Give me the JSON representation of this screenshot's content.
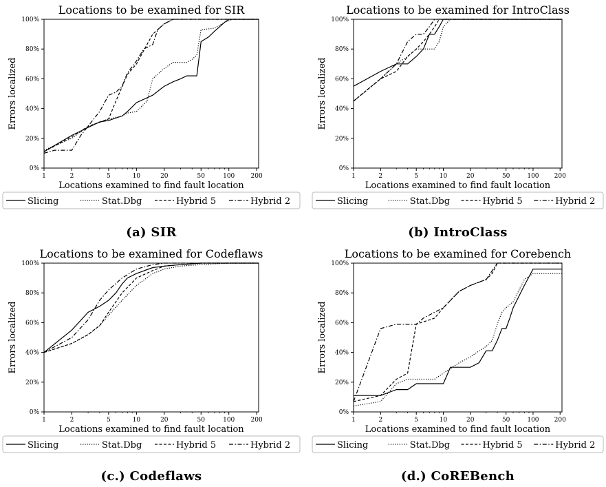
{
  "chart_data": [
    {
      "type": "line",
      "title": "Locations to be examined for SIR",
      "xlabel": "Locations examined to find fault location",
      "ylabel": "Errors localized",
      "x_scale": "log",
      "xlim": [
        1,
        210
      ],
      "ylim": [
        0,
        100
      ],
      "x_ticks": [
        "1",
        "2",
        "5",
        "10",
        "20",
        "50",
        "100",
        "200"
      ],
      "y_ticks": [
        "0%",
        "20%",
        "40%",
        "60%",
        "80%",
        "100%"
      ],
      "legend": "bottom",
      "caption": "(a) SIR",
      "series": [
        {
          "name": "Slicing",
          "style": "solid",
          "points": [
            [
              1,
              11
            ],
            [
              2,
              22
            ],
            [
              4,
              31
            ],
            [
              5,
              32
            ],
            [
              7,
              35
            ],
            [
              8,
              38
            ],
            [
              10,
              44
            ],
            [
              15,
              49
            ],
            [
              20,
              55
            ],
            [
              25,
              58
            ],
            [
              30,
              60
            ],
            [
              35,
              62
            ],
            [
              45,
              62
            ],
            [
              50,
              85
            ],
            [
              60,
              88
            ],
            [
              70,
              92
            ],
            [
              90,
              98
            ],
            [
              100,
              100
            ],
            [
              210,
              100
            ]
          ]
        },
        {
          "name": "Stat.Dbg",
          "style": "dotted",
          "points": [
            [
              1,
              12
            ],
            [
              2,
              20
            ],
            [
              3,
              28
            ],
            [
              5,
              33
            ],
            [
              7,
              35
            ],
            [
              8,
              37
            ],
            [
              10,
              38
            ],
            [
              13,
              45
            ],
            [
              15,
              60
            ],
            [
              20,
              67
            ],
            [
              25,
              71
            ],
            [
              35,
              71
            ],
            [
              40,
              73
            ],
            [
              45,
              76
            ],
            [
              50,
              93
            ],
            [
              70,
              94
            ],
            [
              90,
              98
            ],
            [
              110,
              100
            ],
            [
              210,
              100
            ]
          ]
        },
        {
          "name": "Hybrid 5",
          "style": "dashed",
          "points": [
            [
              1,
              11
            ],
            [
              2,
              21
            ],
            [
              3,
              28
            ],
            [
              5,
              33
            ],
            [
              6,
              45
            ],
            [
              8,
              63
            ],
            [
              10,
              70
            ],
            [
              13,
              83
            ],
            [
              15,
              90
            ],
            [
              20,
              97
            ],
            [
              25,
              100
            ],
            [
              210,
              100
            ]
          ]
        },
        {
          "name": "Hybrid 2",
          "style": "dashdot",
          "points": [
            [
              1,
              10
            ],
            [
              1.3,
              12
            ],
            [
              2,
              12
            ],
            [
              2.5,
              22
            ],
            [
              4,
              38
            ],
            [
              5,
              49
            ],
            [
              6,
              51
            ],
            [
              7,
              55
            ],
            [
              8,
              64
            ],
            [
              10,
              72
            ],
            [
              12,
              80
            ],
            [
              15,
              83
            ],
            [
              17,
              93
            ],
            [
              20,
              97
            ],
            [
              25,
              100
            ],
            [
              210,
              100
            ]
          ]
        }
      ]
    },
    {
      "type": "line",
      "title": "Locations to be examined for IntroClass",
      "xlabel": "Locations examined to find fault location",
      "ylabel": "Errors localized",
      "x_scale": "log",
      "xlim": [
        1,
        210
      ],
      "ylim": [
        0,
        100
      ],
      "x_ticks": [
        "1",
        "2",
        "5",
        "10",
        "20",
        "50",
        "100",
        "200"
      ],
      "y_ticks": [
        "0%",
        "20%",
        "40%",
        "60%",
        "80%",
        "100%"
      ],
      "legend": "bottom",
      "caption": "(b) IntroClass",
      "series": [
        {
          "name": "Slicing",
          "style": "solid",
          "points": [
            [
              1,
              55
            ],
            [
              2,
              65
            ],
            [
              3,
              70
            ],
            [
              4,
              70
            ],
            [
              5,
              75
            ],
            [
              6,
              80
            ],
            [
              7,
              90
            ],
            [
              8,
              90
            ],
            [
              9,
              95
            ],
            [
              10,
              100
            ],
            [
              210,
              100
            ]
          ]
        },
        {
          "name": "Stat.Dbg",
          "style": "dotted",
          "points": [
            [
              1,
              45
            ],
            [
              2,
              60
            ],
            [
              3,
              70
            ],
            [
              4,
              75
            ],
            [
              5,
              80
            ],
            [
              6,
              80
            ],
            [
              7,
              80
            ],
            [
              8,
              80
            ],
            [
              9,
              85
            ],
            [
              10,
              95
            ],
            [
              12,
              100
            ],
            [
              210,
              100
            ]
          ]
        },
        {
          "name": "Hybrid 5",
          "style": "dashed",
          "points": [
            [
              1,
              45
            ],
            [
              2,
              60
            ],
            [
              3,
              65
            ],
            [
              4,
              75
            ],
            [
              5,
              80
            ],
            [
              6,
              85
            ],
            [
              7,
              90
            ],
            [
              8,
              95
            ],
            [
              9,
              100
            ],
            [
              210,
              100
            ]
          ]
        },
        {
          "name": "Hybrid 2",
          "style": "dashdot",
          "points": [
            [
              1,
              45
            ],
            [
              2,
              60
            ],
            [
              3,
              70
            ],
            [
              4,
              85
            ],
            [
              5,
              90
            ],
            [
              6,
              90
            ],
            [
              7,
              95
            ],
            [
              8,
              100
            ],
            [
              210,
              100
            ]
          ]
        }
      ]
    },
    {
      "type": "line",
      "title": "Locations to be examined for Codeflaws",
      "xlabel": "Locations examined to find fault location",
      "ylabel": "Errors localized",
      "x_scale": "log",
      "xlim": [
        1,
        210
      ],
      "ylim": [
        0,
        100
      ],
      "x_ticks": [
        "1",
        "2",
        "5",
        "10",
        "20",
        "50",
        "100",
        "200"
      ],
      "y_ticks": [
        "0%",
        "20%",
        "40%",
        "60%",
        "80%",
        "100%"
      ],
      "legend": "bottom",
      "caption": "(c.) Codeflaws",
      "series": [
        {
          "name": "Slicing",
          "style": "solid",
          "points": [
            [
              1,
              40
            ],
            [
              2,
              55
            ],
            [
              3,
              67
            ],
            [
              4,
              71
            ],
            [
              5,
              75
            ],
            [
              6,
              80
            ],
            [
              7,
              86
            ],
            [
              8,
              90
            ],
            [
              10,
              93
            ],
            [
              15,
              97
            ],
            [
              20,
              98
            ],
            [
              30,
              99
            ],
            [
              50,
              100
            ],
            [
              210,
              100
            ]
          ]
        },
        {
          "name": "Stat.Dbg",
          "style": "dotted",
          "points": [
            [
              1,
              40
            ],
            [
              2,
              46
            ],
            [
              3,
              52
            ],
            [
              4,
              58
            ],
            [
              5,
              65
            ],
            [
              7,
              75
            ],
            [
              10,
              85
            ],
            [
              15,
              93
            ],
            [
              20,
              96
            ],
            [
              30,
              98
            ],
            [
              50,
              99
            ],
            [
              100,
              100
            ],
            [
              210,
              100
            ]
          ]
        },
        {
          "name": "Hybrid 5",
          "style": "dashed",
          "points": [
            [
              1,
              40
            ],
            [
              2,
              46
            ],
            [
              3,
              52
            ],
            [
              4,
              58
            ],
            [
              5,
              67
            ],
            [
              7,
              80
            ],
            [
              10,
              90
            ],
            [
              15,
              95
            ],
            [
              20,
              98
            ],
            [
              30,
              99
            ],
            [
              50,
              100
            ],
            [
              210,
              100
            ]
          ]
        },
        {
          "name": "Hybrid 2",
          "style": "dashdot",
          "points": [
            [
              1,
              40
            ],
            [
              2,
              50
            ],
            [
              3,
              62
            ],
            [
              4,
              75
            ],
            [
              5,
              82
            ],
            [
              7,
              90
            ],
            [
              10,
              96
            ],
            [
              15,
              99
            ],
            [
              20,
              100
            ],
            [
              210,
              100
            ]
          ]
        }
      ]
    },
    {
      "type": "line",
      "title": "Locations to be examined for Corebench",
      "xlabel": "Locations examined to find fault location",
      "ylabel": "Errors localized",
      "x_scale": "log",
      "xlim": [
        1,
        210
      ],
      "ylim": [
        0,
        100
      ],
      "x_ticks": [
        "1",
        "2",
        "5",
        "10",
        "20",
        "50",
        "100",
        "200"
      ],
      "y_ticks": [
        "0%",
        "20%",
        "40%",
        "60%",
        "80%",
        "100%"
      ],
      "legend": "bottom",
      "caption": "(d.) CoREBench",
      "series": [
        {
          "name": "Slicing",
          "style": "solid",
          "points": [
            [
              1,
              11
            ],
            [
              2,
              11
            ],
            [
              3,
              15
            ],
            [
              4,
              15
            ],
            [
              5,
              19
            ],
            [
              10,
              19
            ],
            [
              12,
              30
            ],
            [
              20,
              30
            ],
            [
              25,
              33
            ],
            [
              30,
              41
            ],
            [
              35,
              41
            ],
            [
              40,
              48
            ],
            [
              45,
              56
            ],
            [
              50,
              56
            ],
            [
              55,
              63
            ],
            [
              60,
              70
            ],
            [
              70,
              78
            ],
            [
              80,
              85
            ],
            [
              100,
              96
            ],
            [
              210,
              96
            ]
          ]
        },
        {
          "name": "Stat.Dbg",
          "style": "dotted",
          "points": [
            [
              1,
              4
            ],
            [
              2,
              7
            ],
            [
              3,
              19
            ],
            [
              4,
              22
            ],
            [
              8,
              22
            ],
            [
              10,
              26
            ],
            [
              15,
              33
            ],
            [
              20,
              37
            ],
            [
              25,
              41
            ],
            [
              30,
              44
            ],
            [
              35,
              48
            ],
            [
              40,
              59
            ],
            [
              45,
              67
            ],
            [
              50,
              70
            ],
            [
              60,
              74
            ],
            [
              70,
              82
            ],
            [
              80,
              89
            ],
            [
              100,
              93
            ],
            [
              210,
              93
            ]
          ]
        },
        {
          "name": "Hybrid 5",
          "style": "dashed",
          "points": [
            [
              1,
              7
            ],
            [
              2,
              11
            ],
            [
              3,
              22
            ],
            [
              4,
              26
            ],
            [
              5,
              59
            ],
            [
              8,
              63
            ],
            [
              10,
              70
            ],
            [
              15,
              81
            ],
            [
              20,
              85
            ],
            [
              30,
              89
            ],
            [
              35,
              93
            ],
            [
              40,
              100
            ],
            [
              210,
              100
            ]
          ]
        },
        {
          "name": "Hybrid 2",
          "style": "dashdot",
          "points": [
            [
              1,
              7
            ],
            [
              2,
              56
            ],
            [
              3,
              59
            ],
            [
              5,
              59
            ],
            [
              6,
              63
            ],
            [
              8,
              67
            ],
            [
              10,
              70
            ],
            [
              15,
              81
            ],
            [
              20,
              85
            ],
            [
              30,
              89
            ],
            [
              40,
              100
            ],
            [
              210,
              100
            ]
          ]
        }
      ]
    }
  ]
}
